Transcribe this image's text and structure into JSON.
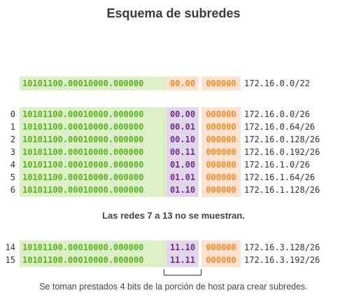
{
  "title": "Esquema de subredes",
  "base_row": {
    "network": "10101100.00010000.000000",
    "subnet_bits": "00.00",
    "host_bits": "000000",
    "cidr": "172.16.0.0/22"
  },
  "subnet_rows": [
    {
      "index": "0",
      "network": "10101100.00010000.000000",
      "subnet_bits": "00.00",
      "host_bits": "000000",
      "cidr": "172.16.0.0/26"
    },
    {
      "index": "1",
      "network": "10101100.00010000.000000",
      "subnet_bits": "00.01",
      "host_bits": "000000",
      "cidr": "172.16.0.64/26"
    },
    {
      "index": "2",
      "network": "10101100.00010000.000000",
      "subnet_bits": "00.10",
      "host_bits": "000000",
      "cidr": "172.16.0.128/26"
    },
    {
      "index": "3",
      "network": "10101100.00010000.000000",
      "subnet_bits": "00.11",
      "host_bits": "000000",
      "cidr": "172.16.0.192/26"
    },
    {
      "index": "4",
      "network": "10101100.00010000.000000",
      "subnet_bits": "01.00",
      "host_bits": "000000",
      "cidr": "172.16.1.0/26"
    },
    {
      "index": "5",
      "network": "10101100.00010000.000000",
      "subnet_bits": "01.01",
      "host_bits": "000000",
      "cidr": "172.16.1.64/26"
    },
    {
      "index": "6",
      "network": "10101100.00010000.000000",
      "subnet_bits": "01.10",
      "host_bits": "000000",
      "cidr": "172.16.1.128/26"
    }
  ],
  "omitted_note": "Las redes 7 a 13 no se muestran.",
  "final_rows": [
    {
      "index": "14",
      "network": "10101100.00010000.000000",
      "subnet_bits": "11.10",
      "host_bits": "000000",
      "cidr": "172.16.3.128/26"
    },
    {
      "index": "15",
      "network": "10101100.00010000.000000",
      "subnet_bits": "11.11",
      "host_bits": "000000",
      "cidr": "172.16.3.192/26"
    }
  ],
  "caption": "Se toman prestados 4 bits de la porción de host para crear subredes.",
  "colors": {
    "network_bg": "#dcefc7",
    "network_text": "#5ab21f",
    "host_bg": "#fde3cf",
    "host_text": "#f08a2e",
    "subnet_bg": "#e1d6ea",
    "subnet_text": "#6d2f8a"
  }
}
